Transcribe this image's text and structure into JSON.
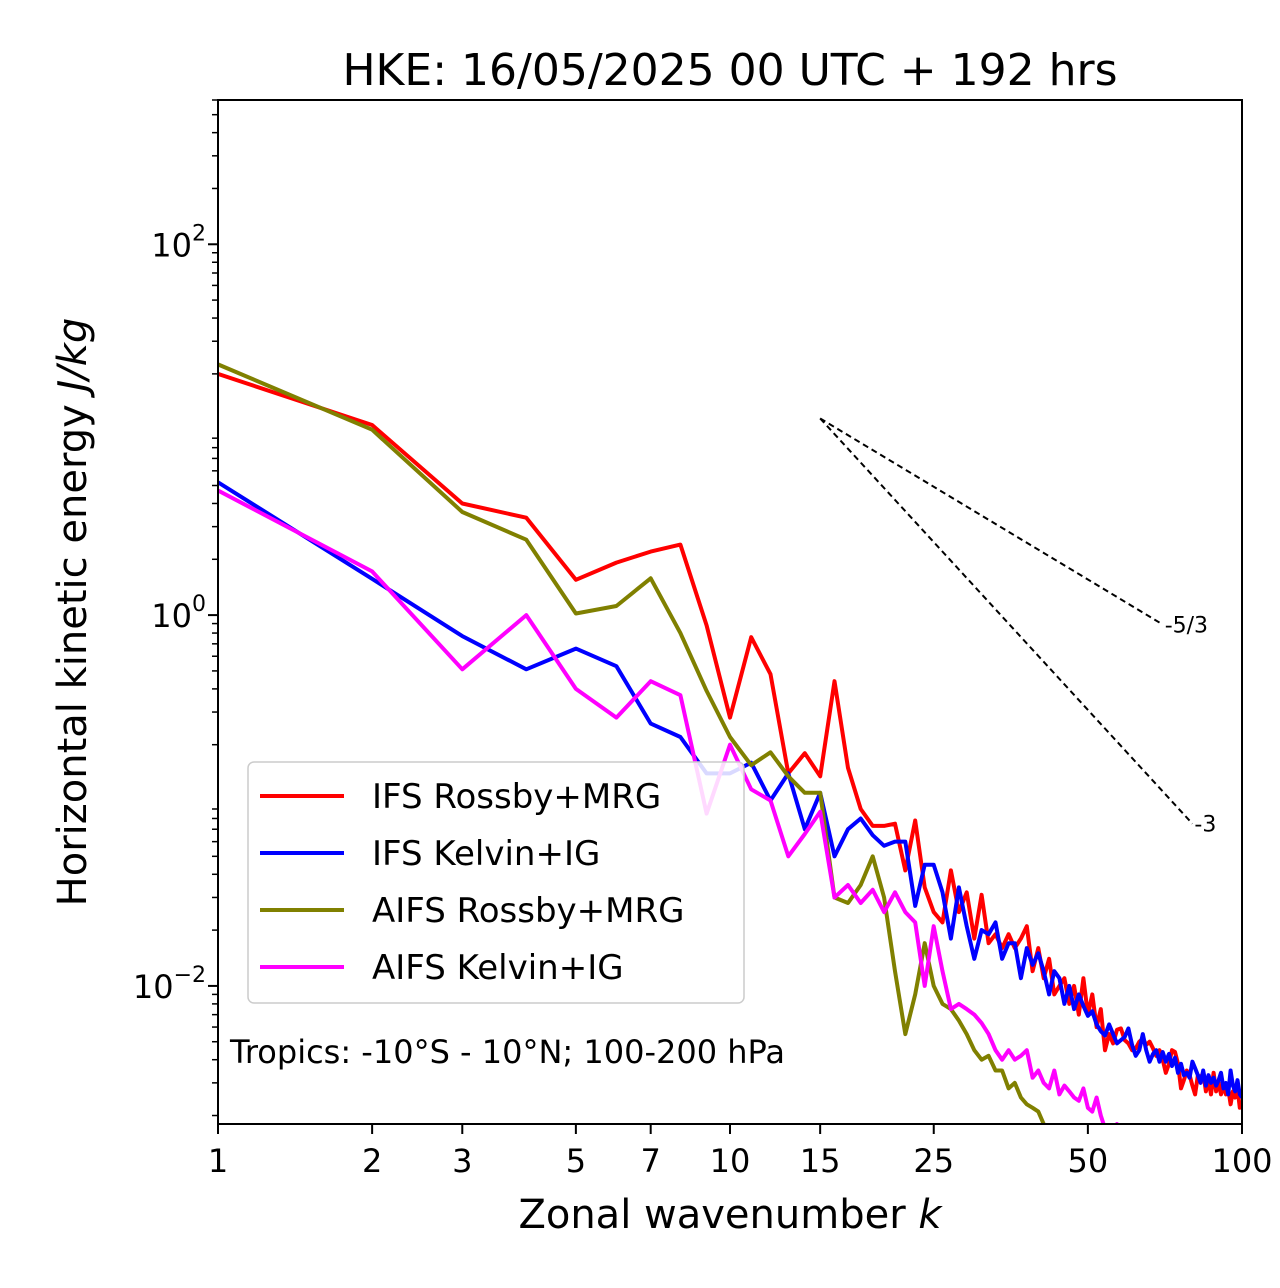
{
  "chart_data": {
    "type": "line",
    "title": "HKE: 16/05/2025 00 UTC + 192 hrs",
    "xlabel": "Zonal wavenumber",
    "xlabel_var": "k",
    "ylabel": "Horizontal kinetic energy",
    "ylabel_unit": "J/kg",
    "x_scale": "log",
    "y_scale": "log",
    "xlim": [
      1,
      100
    ],
    "ylim": [
      0.0018,
      600
    ],
    "xticks": [
      1,
      2,
      3,
      5,
      7,
      10,
      15,
      25,
      50,
      100
    ],
    "yticks": [
      {
        "value": 0.01,
        "base": "10",
        "exp": "−2"
      },
      {
        "value": 1,
        "base": "10",
        "exp": "0"
      },
      {
        "value": 100,
        "base": "10",
        "exp": "2"
      }
    ],
    "legend_position": "lower-left",
    "annotation": "Tropics: -10°S - 10°N; 100-200 hPa",
    "reference_lines": [
      {
        "label": "-5/3",
        "x": [
          15,
          70
        ],
        "y": [
          11.5,
          0.89
        ]
      },
      {
        "label": "-3",
        "x": [
          15,
          80
        ],
        "y": [
          11.5,
          0.075
        ]
      }
    ],
    "series": [
      {
        "name": "IFS Rossby+MRG",
        "color": "#ff0000",
        "x": [
          1,
          2,
          3,
          4,
          5,
          6,
          7,
          8,
          9,
          10,
          11,
          12,
          13,
          14,
          15,
          16,
          17,
          18,
          19,
          20,
          21,
          22,
          23,
          24,
          25,
          26,
          27,
          28,
          29,
          30,
          31,
          32,
          33,
          34,
          35,
          36,
          37,
          38,
          39,
          40,
          41,
          42,
          43,
          44,
          45,
          46,
          47,
          48,
          49,
          50,
          51,
          52,
          53,
          54,
          55,
          56,
          57,
          58,
          59,
          60,
          61,
          62,
          63,
          64,
          65,
          66,
          67,
          68,
          69,
          70,
          71,
          72,
          73,
          74,
          75,
          76,
          77,
          78,
          79,
          80,
          81,
          82,
          83,
          84,
          85,
          86,
          87,
          88,
          89,
          90,
          91,
          92,
          93,
          94,
          95,
          96,
          97,
          98,
          99,
          100
        ],
        "y": [
          20,
          10.6,
          4,
          3.35,
          1.55,
          1.92,
          2.2,
          2.4,
          0.88,
          0.28,
          0.76,
          0.48,
          0.14,
          0.18,
          0.135,
          0.44,
          0.15,
          0.09,
          0.073,
          0.073,
          0.075,
          0.042,
          0.078,
          0.034,
          0.025,
          0.022,
          0.042,
          0.025,
          0.032,
          0.018,
          0.031,
          0.017,
          0.019,
          0.016,
          0.019,
          0.016,
          0.018,
          0.021,
          0.012,
          0.016,
          0.011,
          0.014,
          0.009,
          0.01,
          0.011,
          0.008,
          0.01,
          0.007,
          0.011,
          0.007,
          0.009,
          0.006,
          0.0075,
          0.0045,
          0.0055,
          0.0049,
          0.0058,
          0.0059,
          0.0051,
          0.0049,
          0.0045,
          0.0046,
          0.005,
          0.0052,
          0.0048,
          0.005,
          0.0046,
          0.0042,
          0.0045,
          0.004,
          0.0034,
          0.0038,
          0.0045,
          0.0044,
          0.0038,
          0.0028,
          0.0031,
          0.0035,
          0.0033,
          0.0029,
          0.0026,
          0.0033,
          0.0032,
          0.0034,
          0.0027,
          0.0031,
          0.0026,
          0.0034,
          0.0027,
          0.003,
          0.0026,
          0.0029,
          0.0026,
          0.0028,
          0.0023,
          0.0027,
          0.0025,
          0.0028,
          0.0022,
          0.0023
        ]
      },
      {
        "name": "IFS Kelvin+IG",
        "color": "#0000ff",
        "x": [
          1,
          2,
          3,
          4,
          5,
          6,
          7,
          8,
          9,
          10,
          11,
          12,
          13,
          14,
          15,
          16,
          17,
          18,
          19,
          20,
          21,
          22,
          23,
          24,
          25,
          26,
          27,
          28,
          29,
          30,
          31,
          32,
          33,
          34,
          35,
          36,
          37,
          38,
          39,
          40,
          41,
          42,
          43,
          44,
          45,
          46,
          47,
          48,
          49,
          50,
          51,
          52,
          53,
          54,
          55,
          56,
          57,
          58,
          59,
          60,
          61,
          62,
          63,
          64,
          65,
          66,
          67,
          68,
          69,
          70,
          71,
          72,
          73,
          74,
          75,
          76,
          77,
          78,
          79,
          80,
          81,
          82,
          83,
          84,
          85,
          86,
          87,
          88,
          89,
          90,
          91,
          92,
          93,
          94,
          95,
          96,
          97,
          98,
          99,
          100
        ],
        "y": [
          5.2,
          1.57,
          0.77,
          0.51,
          0.66,
          0.53,
          0.26,
          0.22,
          0.14,
          0.14,
          0.16,
          0.1,
          0.14,
          0.07,
          0.11,
          0.05,
          0.07,
          0.08,
          0.065,
          0.057,
          0.06,
          0.06,
          0.027,
          0.045,
          0.045,
          0.032,
          0.018,
          0.034,
          0.021,
          0.014,
          0.02,
          0.019,
          0.022,
          0.014,
          0.017,
          0.017,
          0.011,
          0.016,
          0.013,
          0.015,
          0.012,
          0.009,
          0.012,
          0.011,
          0.008,
          0.01,
          0.0075,
          0.009,
          0.0078,
          0.0069,
          0.0073,
          0.0062,
          0.0057,
          0.0054,
          0.0062,
          0.0055,
          0.0049,
          0.0051,
          0.0053,
          0.0059,
          0.0048,
          0.0042,
          0.0045,
          0.0055,
          0.0045,
          0.0039,
          0.0043,
          0.0045,
          0.0039,
          0.0044,
          0.0039,
          0.0043,
          0.0037,
          0.0041,
          0.0034,
          0.0038,
          0.0033,
          0.0034,
          0.0032,
          0.0039,
          0.0036,
          0.0033,
          0.003,
          0.0035,
          0.0029,
          0.0033,
          0.003,
          0.0032,
          0.0029,
          0.0031,
          0.0034,
          0.0028,
          0.003,
          0.0026,
          0.0035,
          0.0029,
          0.0027,
          0.0031,
          0.0026,
          0.0025
        ]
      },
      {
        "name": "AIFS Rossby+MRG",
        "color": "#808000",
        "x": [
          1,
          2,
          3,
          4,
          5,
          6,
          7,
          8,
          9,
          10,
          11,
          12,
          13,
          14,
          15,
          16,
          17,
          18,
          19,
          20,
          21,
          22,
          23,
          24,
          25,
          26,
          27,
          28,
          29,
          30,
          31,
          32,
          33,
          34,
          35,
          36,
          37,
          38,
          39,
          40,
          41,
          42,
          43
        ],
        "y": [
          22.5,
          10,
          3.6,
          2.55,
          1.02,
          1.12,
          1.58,
          0.8,
          0.39,
          0.22,
          0.155,
          0.182,
          0.135,
          0.11,
          0.11,
          0.03,
          0.028,
          0.035,
          0.05,
          0.03,
          0.012,
          0.0055,
          0.009,
          0.017,
          0.01,
          0.008,
          0.0075,
          0.0065,
          0.0055,
          0.0045,
          0.004,
          0.0042,
          0.0035,
          0.0035,
          0.0028,
          0.003,
          0.0025,
          0.0023,
          0.0022,
          0.0021,
          0.0018,
          0.0016,
          0.0014
        ]
      },
      {
        "name": "AIFS Kelvin+IG",
        "color": "#ff00ff",
        "x": [
          1,
          2,
          3,
          4,
          5,
          6,
          7,
          8,
          9,
          10,
          11,
          12,
          13,
          14,
          15,
          16,
          17,
          18,
          19,
          20,
          21,
          22,
          23,
          24,
          25,
          26,
          27,
          28,
          29,
          30,
          31,
          32,
          33,
          34,
          35,
          36,
          37,
          38,
          39,
          40,
          41,
          42,
          43,
          44,
          45,
          46,
          47,
          48,
          49,
          50,
          51,
          52,
          53,
          54,
          55,
          56,
          57,
          58
        ],
        "y": [
          4.7,
          1.72,
          0.51,
          1,
          0.4,
          0.28,
          0.44,
          0.37,
          0.085,
          0.2,
          0.115,
          0.1,
          0.05,
          0.066,
          0.087,
          0.03,
          0.035,
          0.028,
          0.033,
          0.025,
          0.032,
          0.025,
          0.022,
          0.01,
          0.021,
          0.012,
          0.0075,
          0.008,
          0.0075,
          0.007,
          0.0063,
          0.0055,
          0.0045,
          0.004,
          0.0045,
          0.004,
          0.0042,
          0.0045,
          0.0032,
          0.0035,
          0.003,
          0.0028,
          0.0035,
          0.0026,
          0.0029,
          0.0027,
          0.0025,
          0.0024,
          0.0028,
          0.0022,
          0.0021,
          0.0025,
          0.002,
          0.0017,
          0.0016,
          0.0012,
          0.0018,
          0.0015
        ]
      }
    ]
  }
}
